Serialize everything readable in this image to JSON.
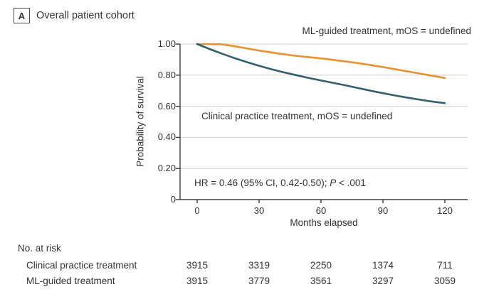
{
  "panel": {
    "letter": "A",
    "title": "Overall patient cohort"
  },
  "annotations": {
    "ml": "ML-guided treatment, mOS = undefined",
    "clinical": "Clinical practice treatment, mOS = undefined",
    "hr_prefix": "HR = 0.46 (95% CI, 0.42-0.50); ",
    "hr_p": "P",
    "hr_rest": " < .001"
  },
  "chart_data": {
    "type": "line",
    "subtype": "kaplan-meier-survival",
    "title": "Overall patient cohort",
    "xlabel": "Months elapsed",
    "ylabel": "Probability of survival",
    "xlim": [
      0,
      120
    ],
    "ylim": [
      0,
      1.0
    ],
    "x_ticks": [
      0,
      30,
      60,
      90,
      120
    ],
    "y_ticks": [
      "1.00",
      "0.80",
      "0.60",
      "0.40",
      "0.20",
      "0"
    ],
    "grid": "horizontal-only",
    "colors": {
      "grid": "#cfcfcf",
      "axis": "#3d3d3d"
    },
    "series": [
      {
        "name": "ML-guided treatment",
        "color": "#E8912F",
        "x": [
          0,
          6,
          12,
          18,
          24,
          30,
          36,
          42,
          48,
          54,
          60,
          66,
          72,
          78,
          84,
          90,
          96,
          102,
          108,
          114,
          120
        ],
        "y": [
          1.0,
          1.0,
          0.998,
          0.986,
          0.972,
          0.958,
          0.946,
          0.934,
          0.924,
          0.916,
          0.908,
          0.898,
          0.888,
          0.877,
          0.865,
          0.852,
          0.838,
          0.824,
          0.81,
          0.796,
          0.782
        ]
      },
      {
        "name": "Clinical practice treatment",
        "color": "#31606C",
        "x": [
          0,
          6,
          12,
          18,
          24,
          30,
          36,
          42,
          48,
          54,
          60,
          66,
          72,
          78,
          84,
          90,
          96,
          102,
          108,
          114,
          120
        ],
        "y": [
          1.0,
          0.968,
          0.938,
          0.91,
          0.884,
          0.86,
          0.838,
          0.818,
          0.8,
          0.782,
          0.766,
          0.75,
          0.734,
          0.717,
          0.7,
          0.684,
          0.669,
          0.655,
          0.642,
          0.63,
          0.62
        ]
      }
    ],
    "risk_table": {
      "header": "No. at risk",
      "rows": [
        {
          "label": "Clinical practice treatment",
          "values": [
            3915,
            3319,
            2250,
            1374,
            711
          ]
        },
        {
          "label": "ML-guided treatment",
          "values": [
            3915,
            3779,
            3561,
            3297,
            3059
          ]
        }
      ]
    }
  }
}
